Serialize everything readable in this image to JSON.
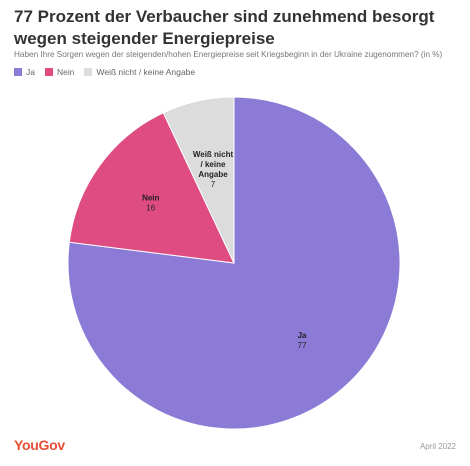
{
  "header": {
    "title": "77 Prozent der Verbaucher sind zunehmend besorgt wegen steigender Energiepreise",
    "subtitle": "Haben Ihre Sorgen wegen der steigenden/hohen Energiepreise seit Kriegsbeginn in der Ukraine zugenommen? (in %)"
  },
  "legend": [
    {
      "label": "Ja",
      "color": "#8c7bd6"
    },
    {
      "label": "Nein",
      "color": "#de4c82"
    },
    {
      "label": "Weiß nicht / keine Angabe",
      "color": "#dcdcdc"
    }
  ],
  "chart_data": {
    "type": "pie",
    "title": "77 Prozent der Verbaucher sind zunehmend besorgt wegen steigender Energiepreise",
    "subtitle": "Haben Ihre Sorgen wegen der steigenden/hohen Energiepreise seit Kriegsbeginn in der Ukraine zugenommen? (in %)",
    "legend_position": "top-left",
    "slices": [
      {
        "label": "Ja",
        "value": 77,
        "color": "#8c7bd6",
        "label_lines": [
          "Ja"
        ]
      },
      {
        "label": "Nein",
        "value": 16,
        "color": "#de4c82",
        "label_lines": [
          "Nein"
        ]
      },
      {
        "label": "Weiß nicht / keine Angabe",
        "value": 7,
        "color": "#dcdcdc",
        "label_lines": [
          "Weiß nicht",
          "/ keine",
          "Angabe"
        ]
      }
    ]
  },
  "footer": {
    "logo": "YouGov",
    "date": "April 2022"
  }
}
